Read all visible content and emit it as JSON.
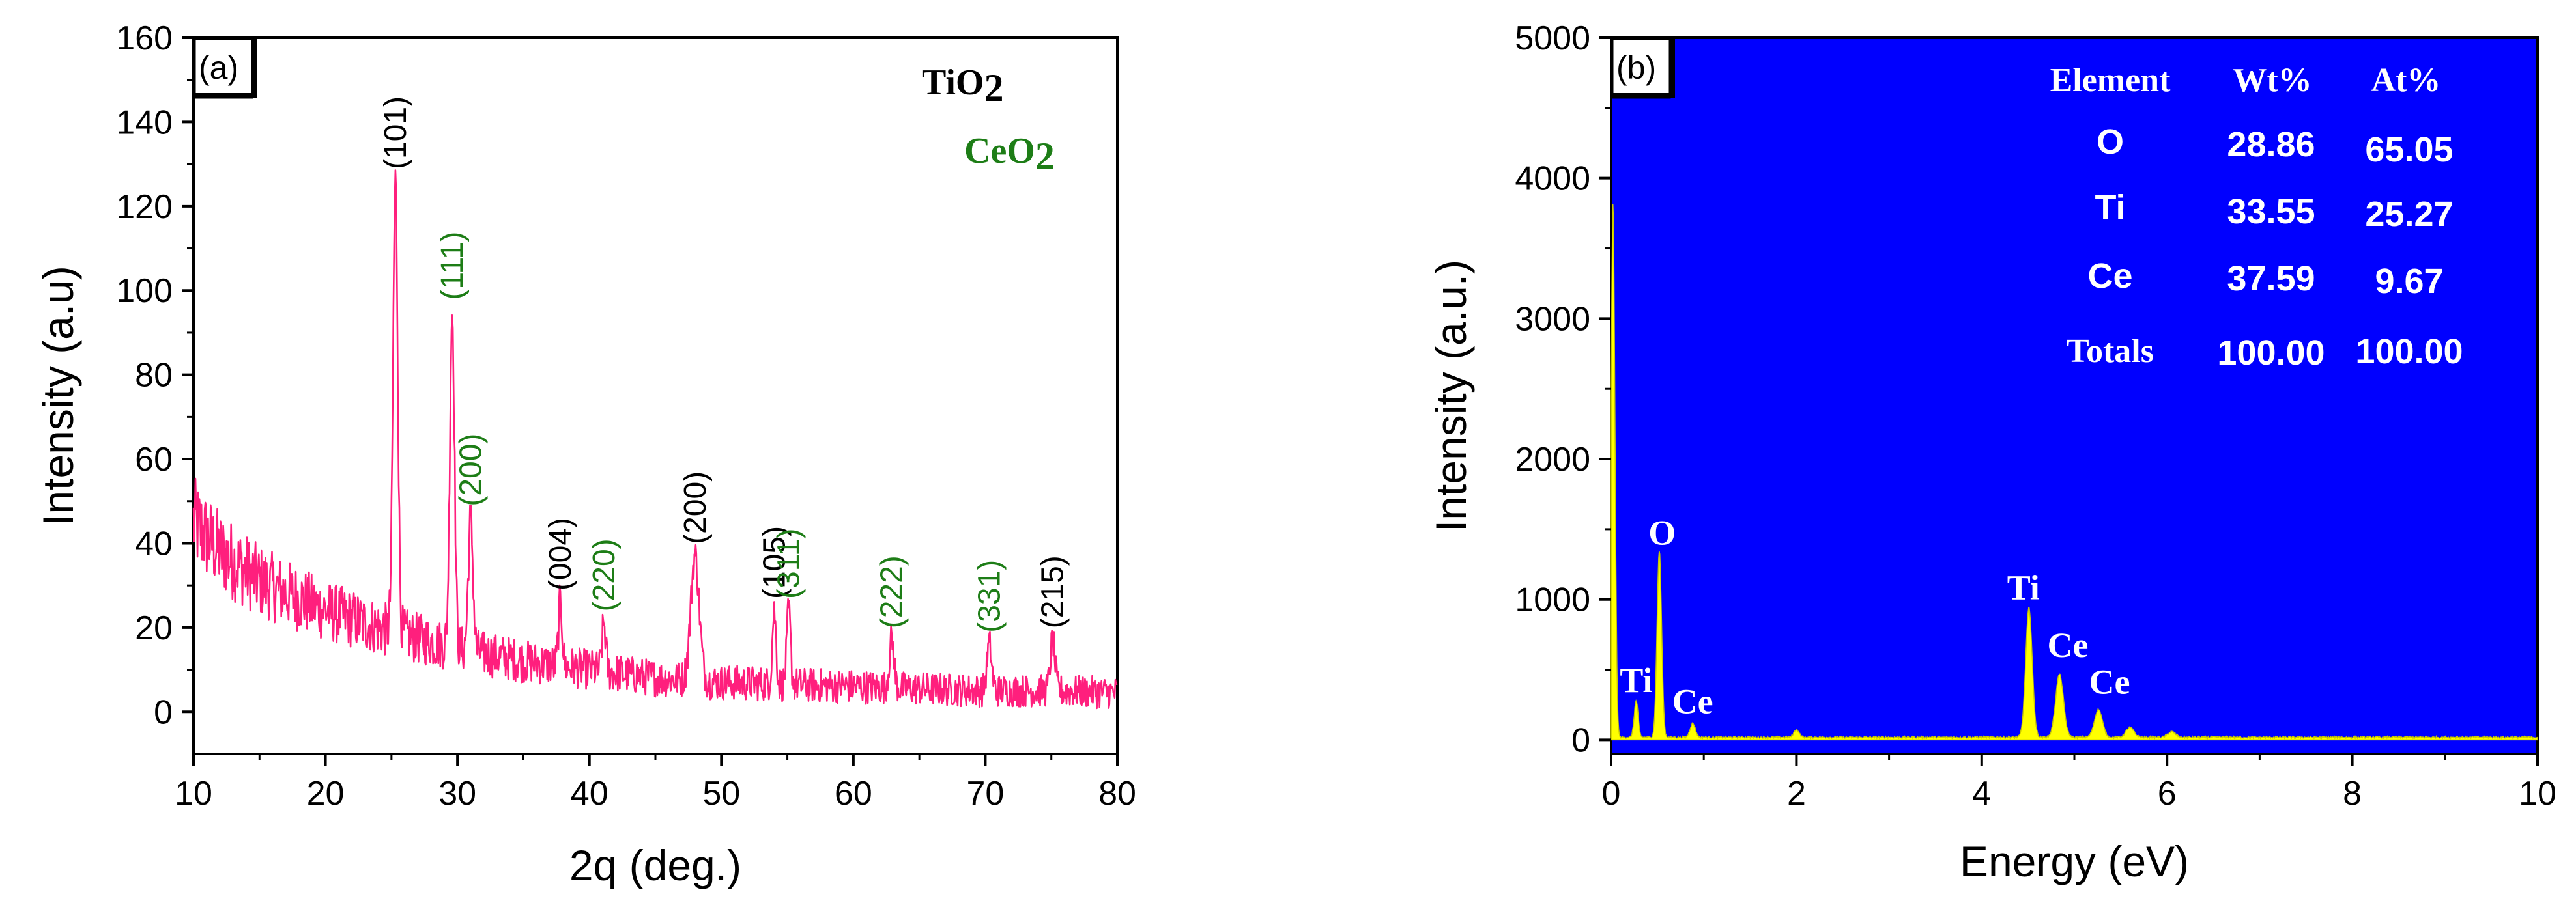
{
  "chart_data": [
    {
      "type": "line",
      "panel_label": "(a)",
      "xlabel": "2q (deg.)",
      "ylabel": "Intensity (a.u)",
      "xlim": [
        10,
        80
      ],
      "ylim": [
        -10,
        160
      ],
      "xticks": [
        10,
        20,
        30,
        40,
        50,
        60,
        70,
        80
      ],
      "yticks": [
        0,
        20,
        40,
        60,
        80,
        100,
        120,
        140,
        160
      ],
      "grid": false,
      "colors": {
        "line": "#ff1f7d",
        "tio2": "#000000",
        "ceo2": "#1d7d16"
      },
      "legend": [
        {
          "name": "TiO",
          "sub": "2",
          "color": "#000000"
        },
        {
          "name": "CeO",
          "sub": "2",
          "color": "#1d7d16"
        }
      ],
      "background_trend": [
        [
          10,
          45
        ],
        [
          12,
          38
        ],
        [
          15,
          31
        ],
        [
          20,
          24
        ],
        [
          25,
          19
        ],
        [
          30,
          15
        ],
        [
          35,
          12
        ],
        [
          40,
          10
        ],
        [
          45,
          8
        ],
        [
          50,
          7
        ],
        [
          55,
          6.5
        ],
        [
          60,
          6
        ],
        [
          65,
          5.5
        ],
        [
          70,
          5
        ],
        [
          75,
          5
        ],
        [
          80,
          4.5
        ]
      ],
      "peaks": [
        {
          "x": 25.3,
          "y": 126,
          "width": 0.25,
          "label": "(101)",
          "phase": "tio2"
        },
        {
          "x": 29.6,
          "y": 95,
          "width": 0.25,
          "label": "(111)",
          "phase": "ceo2"
        },
        {
          "x": 31.0,
          "y": 46,
          "width": 0.25,
          "label": "(200)",
          "phase": "ceo2"
        },
        {
          "x": 37.8,
          "y": 26,
          "width": 0.2,
          "label": "(004)",
          "phase": "tio2"
        },
        {
          "x": 41.1,
          "y": 21,
          "width": 0.2,
          "label": "(220)",
          "phase": "ceo2"
        },
        {
          "x": 48.0,
          "y": 37,
          "width": 0.45,
          "label": "(200)",
          "phase": "tio2"
        },
        {
          "x": 54.0,
          "y": 24,
          "width": 0.2,
          "label": "(105)",
          "phase": "tio2"
        },
        {
          "x": 55.1,
          "y": 24,
          "width": 0.2,
          "label": "(311)",
          "phase": "ceo2"
        },
        {
          "x": 62.9,
          "y": 17,
          "width": 0.25,
          "label": "(222)",
          "phase": "ceo2"
        },
        {
          "x": 70.3,
          "y": 16,
          "width": 0.25,
          "label": "(331)",
          "phase": "ceo2"
        },
        {
          "x": 75.1,
          "y": 17,
          "width": 0.25,
          "label": "(215)",
          "phase": "tio2"
        }
      ]
    },
    {
      "type": "area",
      "panel_label": "(b)",
      "xlabel": "Energy (eV)",
      "ylabel": "Intensity (a.u.)",
      "xlim": [
        0,
        10
      ],
      "ylim": [
        -100,
        5000
      ],
      "xticks": [
        0,
        2,
        4,
        6,
        8,
        10
      ],
      "yticks": [
        0,
        1000,
        2000,
        3000,
        4000,
        5000
      ],
      "grid": false,
      "colors": {
        "background": "#0000ff",
        "fill": "#ffff00",
        "text": "#ffffff"
      },
      "peaks": [
        {
          "x": 0.02,
          "y": 3800,
          "width": 0.03
        },
        {
          "x": 0.27,
          "y": 260,
          "width": 0.03
        },
        {
          "x": 0.52,
          "y": 1330,
          "width": 0.035
        },
        {
          "x": 0.88,
          "y": 100,
          "width": 0.04
        },
        {
          "x": 2.0,
          "y": 55,
          "width": 0.04
        },
        {
          "x": 4.51,
          "y": 920,
          "width": 0.05
        },
        {
          "x": 4.84,
          "y": 450,
          "width": 0.06
        },
        {
          "x": 5.26,
          "y": 200,
          "width": 0.06
        },
        {
          "x": 5.6,
          "y": 70,
          "width": 0.06
        },
        {
          "x": 6.05,
          "y": 40,
          "width": 0.06
        }
      ],
      "peak_labels": [
        {
          "text": "Ti",
          "x": 0.27,
          "y": 340
        },
        {
          "text": "O",
          "x": 0.55,
          "y": 1390
        },
        {
          "text": "Ce",
          "x": 0.88,
          "y": 190
        },
        {
          "text": "Ti",
          "x": 4.45,
          "y": 1000
        },
        {
          "text": "Ce",
          "x": 4.93,
          "y": 590
        },
        {
          "text": "Ce",
          "x": 5.38,
          "y": 330
        }
      ],
      "table": {
        "headers": [
          "Element",
          "Wt%",
          "At%"
        ],
        "rows": [
          [
            "O",
            "28.86",
            "65.05"
          ],
          [
            "Ti",
            "33.55",
            "25.27"
          ],
          [
            "Ce",
            "37.59",
            "9.67"
          ],
          [
            "Totals",
            "100.00",
            "100.00"
          ]
        ]
      }
    }
  ]
}
